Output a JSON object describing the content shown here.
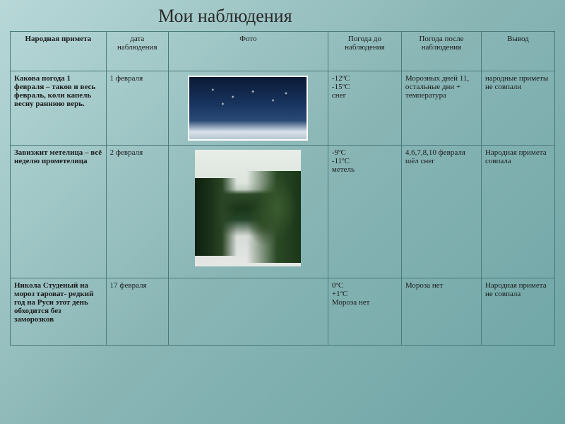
{
  "title": "Мои наблюдения",
  "headers": {
    "primeta": "Народная примета",
    "date": "дата наблюдения",
    "photo": "Фото",
    "before": "Погода до наблюдения",
    "after": "Погода после наблюдения",
    "vivod": "Вывод"
  },
  "rows": [
    {
      "primeta": "Какова погода 1 февраля – таков и весь февраль, коли капель весну раннюю верь.",
      "date": "1 февраля",
      "before": "-12ºС\n-15ºС\nснег",
      "after": "Морозных дней 11, остальные дни + температура",
      "vivod": "народные приметы не совпали"
    },
    {
      "primeta": "Завизжит метелица – всё неделю прометелица",
      "date": "2 февраля",
      "before": "-9ºС\n-11ºС\nметель",
      "after": "4,6,7,8,10 февраля шёл снег",
      "vivod": "Народная примета совпала"
    },
    {
      "primeta": "Никола Студеный на мороз тароват- редкий год на Руси этот день обходится без заморозков",
      "date": "17 февраля",
      "before": "0ºС\n+1ºС\nМороза нет",
      "after": "Мороза нет",
      "vivod": "Народная примета не совпала"
    }
  ],
  "style": {
    "background_gradient": [
      "#b8d8d8",
      "#89b5b5",
      "#6da5a5"
    ],
    "border_color": "#4a7a7a",
    "title_fontsize": 26,
    "cell_fontsize": 11,
    "font_family": "Times New Roman"
  }
}
